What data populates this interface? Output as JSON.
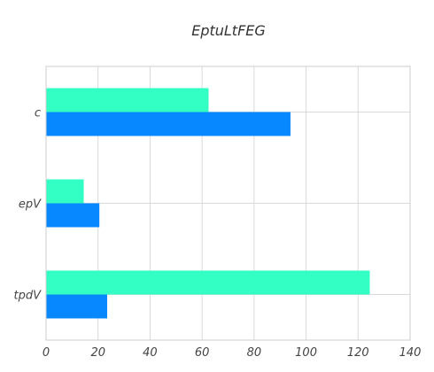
{
  "chart_data": {
    "type": "bar",
    "orientation": "horizontal",
    "title": "EptuLtFEG",
    "xlabel": "",
    "ylabel": "",
    "categories": [
      "tpdV",
      "epV",
      "c"
    ],
    "series": [
      {
        "values": [
          124.5,
          14.5,
          62.5
        ],
        "color": "#33ffc4"
      },
      {
        "values": [
          23.5,
          20.5,
          94.0
        ],
        "color": "#0788ff"
      }
    ],
    "xlim": [
      0,
      140
    ],
    "xticks": [
      0,
      20,
      40,
      60,
      80,
      100,
      120,
      140
    ],
    "grid": true,
    "legend": "none"
  }
}
